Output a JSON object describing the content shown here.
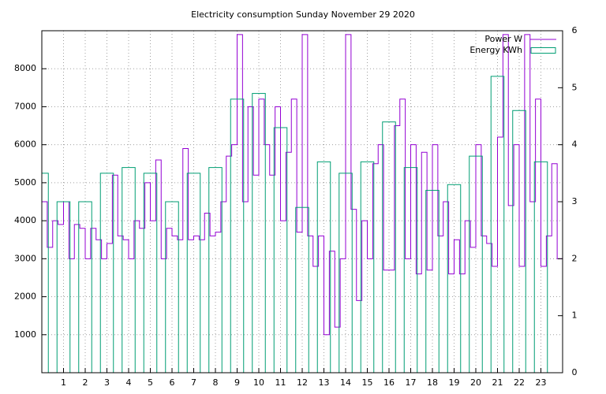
{
  "chart_data": {
    "type": "line",
    "title": "Electricity consumption Sunday November 29 2020",
    "xlim": [
      0,
      24
    ],
    "xticks": [
      1,
      2,
      3,
      4,
      5,
      6,
      7,
      8,
      9,
      10,
      11,
      12,
      13,
      14,
      15,
      16,
      17,
      18,
      19,
      20,
      21,
      22,
      23
    ],
    "ylim": [
      0,
      9000
    ],
    "yticks": [
      1000,
      2000,
      3000,
      4000,
      5000,
      6000,
      7000,
      8000
    ],
    "y2lim": [
      0,
      6
    ],
    "y2ticks": [
      0,
      1,
      2,
      3,
      4,
      5,
      6
    ],
    "grid": true,
    "legend": "top-right",
    "series": [
      {
        "name": "Power W",
        "color": "#9400d3",
        "style": "steps",
        "x": [
          0,
          0.25,
          0.5,
          0.75,
          1,
          1.25,
          1.5,
          1.75,
          2,
          2.25,
          2.5,
          2.75,
          3,
          3.25,
          3.5,
          3.75,
          4,
          4.25,
          4.5,
          4.75,
          5,
          5.25,
          5.5,
          5.75,
          6,
          6.25,
          6.5,
          6.75,
          7,
          7.25,
          7.5,
          7.75,
          8,
          8.25,
          8.5,
          8.75,
          9,
          9.25,
          9.5,
          9.75,
          10,
          10.25,
          10.5,
          10.75,
          11,
          11.25,
          11.5,
          11.75,
          12,
          12.25,
          12.5,
          12.75,
          13,
          13.25,
          13.5,
          13.75,
          14,
          14.25,
          14.5,
          14.75,
          15,
          15.25,
          15.5,
          15.75,
          16,
          16.25,
          16.5,
          16.75,
          17,
          17.25,
          17.5,
          17.75,
          18,
          18.25,
          18.5,
          18.75,
          19,
          19.25,
          19.5,
          19.75,
          20,
          20.25,
          20.5,
          20.75,
          21,
          21.25,
          21.5,
          21.75,
          22,
          22.25,
          22.5,
          22.75,
          23,
          23.25,
          23.5,
          23.75
        ],
        "values": [
          4500,
          3300,
          4000,
          3900,
          4500,
          3000,
          3900,
          3800,
          3000,
          3800,
          3500,
          3000,
          3400,
          5200,
          3600,
          3500,
          3000,
          4000,
          3800,
          5000,
          4000,
          5600,
          3000,
          3800,
          3600,
          3500,
          5900,
          3500,
          3600,
          3500,
          4200,
          3600,
          3700,
          4500,
          5700,
          6000,
          8900,
          4500,
          7000,
          5200,
          7200,
          6000,
          5200,
          7000,
          4000,
          5800,
          7200,
          3700,
          8900,
          3600,
          2800,
          3600,
          1000,
          3200,
          1200,
          3000,
          8900,
          4300,
          1900,
          4000,
          3000,
          5500,
          6000,
          2700,
          2700,
          6500,
          7200,
          3000,
          6000,
          2600,
          5800,
          2700,
          6000,
          3600,
          4500,
          2600,
          3500,
          2600,
          4000,
          3300,
          6000,
          3600,
          3400,
          2800,
          6200,
          8900,
          4400,
          6000,
          2800,
          8900,
          4500,
          7200,
          2800,
          3600,
          5500,
          3000
        ]
      },
      {
        "name": "Energy KWh",
        "color": "#009e73",
        "style": "boxes",
        "axis": "y2",
        "x": [
          0,
          1,
          2,
          3,
          4,
          5,
          6,
          7,
          8,
          9,
          10,
          11,
          12,
          13,
          14,
          15,
          16,
          17,
          18,
          19,
          20,
          21,
          22,
          23
        ],
        "values": [
          3.5,
          3.0,
          3.0,
          3.5,
          3.6,
          3.5,
          3.0,
          3.5,
          3.6,
          4.8,
          4.9,
          4.3,
          2.9,
          3.7,
          3.5,
          3.7,
          4.4,
          3.6,
          3.2,
          3.3,
          3.8,
          5.2,
          4.6,
          3.7
        ]
      }
    ]
  }
}
